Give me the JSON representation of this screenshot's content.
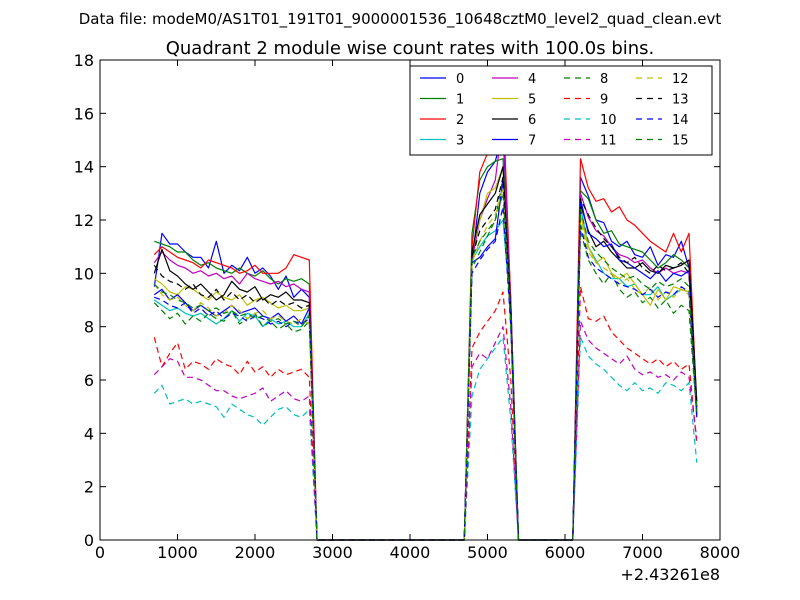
{
  "chart_data": {
    "type": "line",
    "suptitle": "Data file: modeM0/AS1T01_191T01_9000001536_10648cztM0_level2_quad_clean.evt",
    "title": "Quadrant 2 module wise count rates with 100.0s bins.",
    "xlabel": "",
    "ylabel": "",
    "x_offset_label": "+2.43261e8",
    "xlim": [
      0,
      8000
    ],
    "ylim": [
      0,
      18
    ],
    "xticks": [
      "0",
      "1000",
      "2000",
      "3000",
      "4000",
      "5000",
      "6000",
      "7000",
      "8000"
    ],
    "yticks": [
      "0",
      "2",
      "4",
      "6",
      "8",
      "10",
      "12",
      "14",
      "16",
      "18"
    ],
    "legend_position": "top-right",
    "segments": [
      {
        "name": "segment-1",
        "x_start": 700,
        "x_step": 100
      },
      {
        "name": "segment-2",
        "x_start": 4700,
        "x_step": 100
      },
      {
        "name": "segment-3",
        "x_start": 6100,
        "x_step": 100
      }
    ],
    "series": [
      {
        "name": "0",
        "color": "#0000ff",
        "dash": "solid",
        "seg1": [
          9.5,
          11.5,
          11.1,
          11.1,
          10.8,
          10.6,
          10.6,
          10.2,
          11.2,
          10.0,
          10.3,
          10.1,
          10.6,
          10.0,
          10.2,
          9.9,
          9.4,
          9.9,
          9.1,
          9.4,
          9.1,
          0,
          0,
          0
        ],
        "seg2": [
          0,
          10.4,
          13.0,
          13.8,
          14.2,
          15.3,
          9.0,
          0
        ],
        "seg3": [
          0,
          13.6,
          12.9,
          12.0,
          11.9,
          11.2,
          11.0,
          11.2,
          10.7,
          10.6,
          11.0,
          10.3,
          10.7,
          10.6,
          11.2,
          10.2,
          4.8
        ]
      },
      {
        "name": "1",
        "color": "#008000",
        "dash": "solid",
        "seg1": [
          11.2,
          11.1,
          11.0,
          10.8,
          10.8,
          10.5,
          10.3,
          10.4,
          10.2,
          10.1,
          10.0,
          10.2,
          10.0,
          9.9,
          10.1,
          9.8,
          9.6,
          9.8,
          9.7,
          9.8,
          9.6,
          0,
          0,
          0
        ],
        "seg2": [
          0,
          11.5,
          13.5,
          14.0,
          14.2,
          14.3,
          8.5,
          0
        ],
        "seg3": [
          0,
          13.1,
          12.8,
          12.0,
          11.5,
          11.6,
          11.1,
          11.0,
          10.9,
          10.8,
          10.5,
          10.2,
          10.4,
          10.7,
          10.5,
          10.2,
          4.8
        ]
      },
      {
        "name": "2",
        "color": "#ff0000",
        "dash": "solid",
        "seg1": [
          10.7,
          11.0,
          10.8,
          10.6,
          10.5,
          10.4,
          10.2,
          10.5,
          10.4,
          10.3,
          10.2,
          10.0,
          10.1,
          10.3,
          10.0,
          10.0,
          10.0,
          10.2,
          10.7,
          10.6,
          10.5,
          0,
          0,
          0
        ],
        "seg2": [
          0,
          11.0,
          13.8,
          14.5,
          14.5,
          16.5,
          8.9,
          0
        ],
        "seg3": [
          0,
          14.3,
          13.2,
          12.7,
          12.8,
          12.3,
          12.5,
          12.0,
          11.8,
          11.5,
          11.2,
          11.0,
          10.8,
          11.5,
          10.8,
          11.5,
          5.0
        ]
      },
      {
        "name": "3",
        "color": "#00bfbf",
        "dash": "solid",
        "seg1": [
          9.0,
          8.8,
          8.6,
          8.7,
          8.5,
          8.4,
          8.5,
          8.3,
          8.1,
          8.3,
          8.6,
          8.2,
          8.5,
          8.4,
          8.0,
          8.3,
          8.1,
          8.2,
          8.0,
          8.0,
          8.5,
          0,
          0,
          0
        ],
        "seg2": [
          0,
          10.5,
          11.0,
          11.4,
          11.6,
          12.0,
          8.5,
          0
        ],
        "seg3": [
          0,
          12.5,
          11.0,
          10.5,
          10.0,
          9.8,
          9.8,
          9.5,
          9.6,
          9.2,
          9.2,
          9.5,
          9.0,
          9.2,
          9.4,
          9.3,
          4.8
        ]
      },
      {
        "name": "4",
        "color": "#bf00bf",
        "dash": "solid",
        "seg1": [
          10.4,
          10.8,
          10.5,
          10.3,
          10.2,
          10.0,
          10.1,
          9.9,
          10.0,
          9.8,
          9.9,
          9.6,
          10.0,
          9.8,
          9.7,
          9.6,
          9.7,
          9.5,
          9.6,
          9.4,
          9.3,
          0,
          0,
          0
        ],
        "seg2": [
          0,
          10.5,
          12.0,
          12.8,
          13.5,
          15.8,
          8.6,
          0
        ],
        "seg3": [
          0,
          13.0,
          12.1,
          11.6,
          11.4,
          11.0,
          10.7,
          10.6,
          10.4,
          10.5,
          10.2,
          10.0,
          10.2,
          10.0,
          10.1,
          10.0,
          4.8
        ]
      },
      {
        "name": "5",
        "color": "#bfbf00",
        "dash": "solid",
        "seg1": [
          9.8,
          9.6,
          9.3,
          9.2,
          9.5,
          9.4,
          9.2,
          9.0,
          9.3,
          9.1,
          9.0,
          9.2,
          8.8,
          9.0,
          9.1,
          8.9,
          8.7,
          8.8,
          8.6,
          8.6,
          8.7,
          0,
          0,
          0
        ],
        "seg2": [
          0,
          10.8,
          12.0,
          13.0,
          13.2,
          14.0,
          8.6,
          0
        ],
        "seg3": [
          0,
          12.2,
          11.0,
          10.4,
          10.6,
          10.0,
          9.8,
          10.0,
          9.6,
          9.2,
          8.8,
          9.4,
          9.0,
          9.5,
          9.4,
          9.3,
          4.8
        ]
      },
      {
        "name": "6",
        "color": "#000000",
        "dash": "solid",
        "seg1": [
          10.0,
          10.9,
          10.1,
          9.9,
          9.6,
          9.4,
          9.6,
          9.3,
          9.0,
          9.2,
          9.7,
          9.4,
          9.3,
          9.5,
          9.0,
          9.2,
          9.1,
          9.3,
          9.0,
          9.0,
          8.9,
          0,
          0,
          0
        ],
        "seg2": [
          0,
          10.8,
          12.2,
          12.6,
          13.0,
          14.0,
          8.6,
          0
        ],
        "seg3": [
          0,
          12.6,
          11.6,
          11.0,
          11.2,
          10.8,
          10.5,
          10.2,
          10.2,
          10.4,
          10.1,
          10.0,
          10.3,
          10.2,
          10.3,
          10.5,
          5.2
        ]
      },
      {
        "name": "7",
        "color": "#0000ff",
        "dash": "solid",
        "seg1": [
          9.2,
          9.4,
          9.0,
          9.2,
          8.9,
          8.6,
          8.8,
          8.6,
          8.4,
          8.6,
          8.8,
          8.5,
          8.6,
          8.7,
          8.4,
          8.3,
          8.5,
          8.2,
          8.4,
          8.1,
          8.7,
          0,
          0,
          0
        ],
        "seg2": [
          0,
          10.4,
          10.6,
          11.0,
          11.3,
          13.5,
          8.4,
          0
        ],
        "seg3": [
          0,
          12.8,
          11.5,
          11.3,
          11.0,
          11.1,
          10.5,
          10.4,
          10.2,
          10.0,
          9.8,
          10.1,
          9.7,
          10.0,
          9.9,
          10.1,
          4.7
        ]
      },
      {
        "name": "8",
        "color": "#008000",
        "dash": "dashed",
        "seg1": [
          8.9,
          8.6,
          8.3,
          8.5,
          8.1,
          8.4,
          8.2,
          8.5,
          8.3,
          8.2,
          8.6,
          8.1,
          8.3,
          8.5,
          8.0,
          8.2,
          7.9,
          8.1,
          7.8,
          7.9,
          8.2,
          0,
          0,
          0
        ],
        "seg2": [
          0,
          10.2,
          10.8,
          11.4,
          12.0,
          13.6,
          8.0,
          0
        ],
        "seg3": [
          0,
          11.6,
          10.5,
          10.0,
          9.6,
          10.0,
          9.4,
          9.1,
          9.3,
          8.9,
          9.1,
          8.7,
          9.0,
          8.5,
          8.8,
          8.6,
          4.6
        ]
      },
      {
        "name": "9",
        "color": "#ff0000",
        "dash": "dashed",
        "seg1": [
          7.6,
          6.5,
          7.0,
          7.4,
          6.4,
          6.7,
          6.6,
          6.4,
          6.8,
          6.6,
          6.5,
          6.2,
          6.7,
          6.3,
          6.5,
          6.1,
          6.4,
          6.2,
          6.3,
          6.4,
          6.1,
          0,
          0,
          0
        ],
        "seg2": [
          0,
          7.2,
          7.8,
          8.2,
          8.6,
          9.3,
          6.0,
          0
        ],
        "seg3": [
          0,
          9.5,
          8.3,
          8.2,
          8.4,
          7.8,
          7.5,
          7.2,
          7.0,
          6.8,
          6.6,
          6.8,
          6.5,
          6.7,
          6.4,
          6.6,
          3.6
        ]
      },
      {
        "name": "10",
        "color": "#00bfbf",
        "dash": "dashed",
        "seg1": [
          5.5,
          5.8,
          5.1,
          5.2,
          5.3,
          5.1,
          5.2,
          5.1,
          5.0,
          4.6,
          5.1,
          4.9,
          4.7,
          4.6,
          4.3,
          4.6,
          4.9,
          5.0,
          4.7,
          4.6,
          4.9,
          0,
          0,
          0
        ],
        "seg2": [
          0,
          5.4,
          6.4,
          6.8,
          7.2,
          7.6,
          4.5,
          0
        ],
        "seg3": [
          0,
          7.6,
          6.9,
          6.6,
          6.4,
          6.1,
          5.8,
          5.6,
          5.9,
          5.6,
          5.7,
          5.5,
          5.9,
          5.8,
          5.6,
          5.9,
          2.9
        ]
      },
      {
        "name": "11",
        "color": "#bf00bf",
        "dash": "dashed",
        "seg1": [
          6.2,
          6.5,
          6.8,
          6.7,
          6.1,
          6.1,
          6.0,
          5.8,
          5.6,
          5.6,
          5.4,
          5.3,
          5.4,
          5.5,
          5.7,
          5.2,
          5.4,
          5.6,
          5.3,
          5.2,
          5.4,
          0,
          0,
          0
        ],
        "seg2": [
          0,
          6.5,
          7.0,
          6.8,
          7.4,
          8.0,
          5.0,
          0
        ],
        "seg3": [
          0,
          8.2,
          7.5,
          7.2,
          7.0,
          6.8,
          6.6,
          6.9,
          6.4,
          6.2,
          6.3,
          6.1,
          6.2,
          6.0,
          6.3,
          6.1,
          3.8
        ]
      },
      {
        "name": "12",
        "color": "#bfbf00",
        "dash": "dashed",
        "seg1": [
          9.6,
          9.2,
          9.0,
          9.1,
          8.8,
          8.6,
          8.9,
          8.7,
          8.4,
          8.5,
          8.8,
          8.6,
          8.3,
          8.5,
          8.6,
          8.3,
          8.4,
          8.2,
          8.1,
          8.3,
          8.1,
          0,
          0,
          0
        ],
        "seg2": [
          0,
          10.4,
          11.2,
          11.8,
          12.2,
          13.2,
          8.0,
          0
        ],
        "seg3": [
          0,
          12.0,
          10.8,
          10.4,
          10.2,
          10.0,
          9.6,
          9.8,
          9.4,
          9.2,
          9.5,
          9.0,
          9.3,
          9.1,
          9.4,
          9.2,
          4.6
        ]
      },
      {
        "name": "13",
        "color": "#000000",
        "dash": "dashed",
        "seg1": [
          10.3,
          9.9,
          9.7,
          9.6,
          9.4,
          9.6,
          9.2,
          9.1,
          9.4,
          9.0,
          9.3,
          9.0,
          9.2,
          8.9,
          9.1,
          8.8,
          9.0,
          8.8,
          8.9,
          8.7,
          8.8,
          0,
          0,
          0
        ],
        "seg2": [
          0,
          10.6,
          11.6,
          12.0,
          12.4,
          13.6,
          8.4,
          0
        ],
        "seg3": [
          0,
          12.8,
          12.2,
          11.7,
          11.3,
          11.0,
          10.6,
          10.4,
          10.6,
          10.2,
          10.0,
          10.3,
          10.1,
          10.2,
          10.4,
          10.0,
          5.0
        ]
      },
      {
        "name": "14",
        "color": "#0000ff",
        "dash": "dashed",
        "seg1": [
          9.1,
          9.0,
          8.8,
          8.7,
          8.9,
          8.5,
          8.7,
          8.4,
          8.6,
          8.3,
          8.5,
          8.4,
          8.2,
          8.4,
          8.3,
          8.1,
          8.2,
          8.0,
          8.2,
          8.1,
          8.3,
          0,
          0,
          0
        ],
        "seg2": [
          0,
          10.0,
          10.5,
          10.9,
          11.2,
          12.5,
          8.0,
          0
        ],
        "seg3": [
          0,
          11.8,
          10.6,
          10.2,
          10.0,
          9.8,
          9.6,
          9.5,
          9.4,
          9.2,
          9.4,
          9.1,
          9.3,
          9.2,
          9.5,
          9.3,
          4.6
        ]
      },
      {
        "name": "15",
        "color": "#008000",
        "dash": "dashed",
        "seg1": [
          9.6,
          9.3,
          9.2,
          9.0,
          8.9,
          8.7,
          8.8,
          8.6,
          8.7,
          8.5,
          8.6,
          8.4,
          8.5,
          8.3,
          8.4,
          8.2,
          8.3,
          8.1,
          8.2,
          8.0,
          8.4,
          0,
          0,
          0
        ],
        "seg2": [
          0,
          10.6,
          11.2,
          11.6,
          12.0,
          13.0,
          8.2,
          0
        ],
        "seg3": [
          0,
          12.4,
          11.2,
          10.8,
          10.5,
          10.2,
          10.0,
          9.8,
          9.9,
          9.6,
          9.4,
          9.7,
          9.5,
          9.6,
          9.8,
          9.5,
          4.8
        ]
      }
    ]
  }
}
